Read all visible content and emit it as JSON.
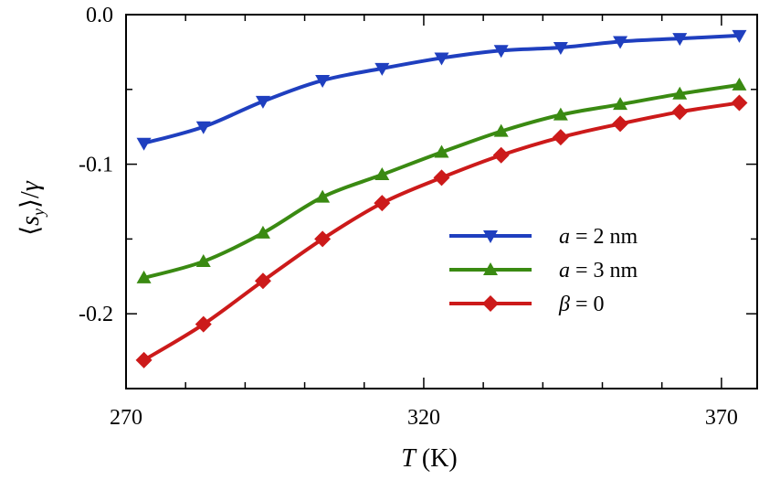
{
  "chart_data": {
    "type": "line",
    "xlabel": {
      "var": "T",
      "unit": " (K)"
    },
    "ylabel": {
      "open": "⟨",
      "var": "s",
      "sub": "y",
      "close": "⟩/",
      "var2": "γ"
    },
    "xlim": [
      270,
      376
    ],
    "ylim": [
      -0.25,
      0.0
    ],
    "x_ticks": [
      {
        "value": 270,
        "label": "270"
      },
      {
        "value": 320,
        "label": "320"
      },
      {
        "value": 370,
        "label": "370"
      }
    ],
    "y_ticks": [
      {
        "value": 0.0,
        "label": "0.0"
      },
      {
        "value": -0.1,
        "label": "-0.1"
      },
      {
        "value": -0.2,
        "label": "-0.2"
      }
    ],
    "x_minor_step": 10,
    "y_minor_step": 0.05,
    "x": [
      273,
      283,
      293,
      303,
      313,
      323,
      333,
      343,
      353,
      363,
      373
    ],
    "series": [
      {
        "name": "a = 2 nm",
        "legend_var": "a",
        "legend_rest": " = 2 nm",
        "color": "#1f3fbf",
        "marker": "triangle-down",
        "values": [
          -0.086,
          -0.075,
          -0.058,
          -0.044,
          -0.036,
          -0.029,
          -0.024,
          -0.022,
          -0.018,
          -0.016,
          -0.014
        ]
      },
      {
        "name": "a = 3 nm",
        "legend_var": "a",
        "legend_rest": " = 3 nm",
        "color": "#3a8a12",
        "marker": "triangle-up",
        "values": [
          -0.176,
          -0.165,
          -0.146,
          -0.122,
          -0.107,
          -0.092,
          -0.078,
          -0.067,
          -0.06,
          -0.053,
          -0.047
        ]
      },
      {
        "name": "β = 0",
        "legend_var": "β",
        "legend_rest": " = 0",
        "color": "#cc1a1a",
        "marker": "diamond",
        "values": [
          -0.231,
          -0.207,
          -0.178,
          -0.15,
          -0.126,
          -0.109,
          -0.094,
          -0.082,
          -0.073,
          -0.065,
          -0.059
        ]
      }
    ]
  }
}
